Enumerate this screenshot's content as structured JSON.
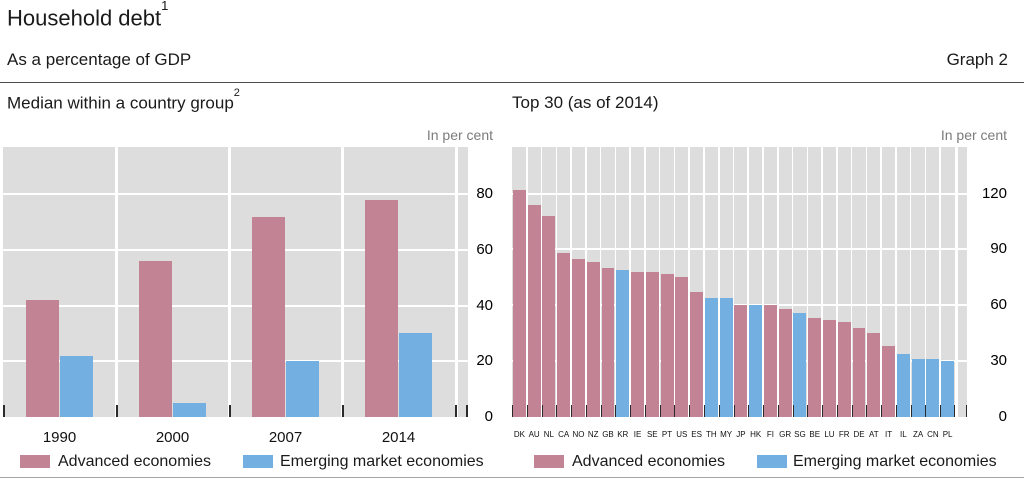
{
  "header": {
    "title": "Household debt",
    "title_sup": "1",
    "subtitle": "As a percentage of GDP",
    "graph_label": "Graph 2"
  },
  "legend": {
    "advanced": "Advanced economies",
    "emerging": "Emerging market economies"
  },
  "colors": {
    "advanced": "#c28394",
    "emerging": "#73afe0",
    "plot_bg": "#dedddd",
    "gridline": "#ffffff",
    "tick": "#2a2a2a",
    "unit_text": "#7b7b7b"
  },
  "chart_data": [
    {
      "type": "bar",
      "title": "Median within a country group",
      "title_sup": "2",
      "unit": "In per cent",
      "categories": [
        "1990",
        "2000",
        "2007",
        "2014"
      ],
      "series": [
        {
          "name": "Advanced economies",
          "color_key": "advanced",
          "values": [
            42,
            56,
            72,
            78
          ]
        },
        {
          "name": "Emerging market economies",
          "color_key": "emerging",
          "values": [
            22,
            5,
            20,
            30
          ]
        }
      ],
      "yticks": [
        0,
        20,
        40,
        60,
        80
      ],
      "ylim": [
        0,
        97
      ],
      "grid": true,
      "legend_position": "bottom"
    },
    {
      "type": "bar",
      "title": "Top 30 (as of 2014)",
      "title_sup": "",
      "unit": "In per cent",
      "categories": [
        "DK",
        "AU",
        "NL",
        "CA",
        "NO",
        "NZ",
        "GB",
        "KR",
        "IE",
        "SE",
        "PT",
        "US",
        "ES",
        "TH",
        "MY",
        "JP",
        "HK",
        "FI",
        "GR",
        "SG",
        "BE",
        "LU",
        "FR",
        "DE",
        "AT",
        "IT",
        "IL",
        "ZA",
        "CN",
        "PL"
      ],
      "values": [
        122,
        114,
        108,
        88,
        85,
        83,
        80,
        79,
        78,
        78,
        77,
        75,
        67,
        64,
        64,
        60,
        60,
        60,
        58,
        56,
        53,
        52,
        51,
        48,
        45,
        38,
        34,
        31,
        31,
        30
      ],
      "group_of": [
        "advanced",
        "advanced",
        "advanced",
        "advanced",
        "advanced",
        "advanced",
        "advanced",
        "emerging",
        "advanced",
        "advanced",
        "advanced",
        "advanced",
        "advanced",
        "emerging",
        "emerging",
        "advanced",
        "emerging",
        "advanced",
        "advanced",
        "emerging",
        "advanced",
        "advanced",
        "advanced",
        "advanced",
        "advanced",
        "advanced",
        "emerging",
        "emerging",
        "emerging",
        "emerging"
      ],
      "yticks": [
        0,
        30,
        60,
        90,
        120
      ],
      "ylim": [
        0,
        145
      ],
      "grid": true,
      "legend_position": "bottom"
    }
  ]
}
